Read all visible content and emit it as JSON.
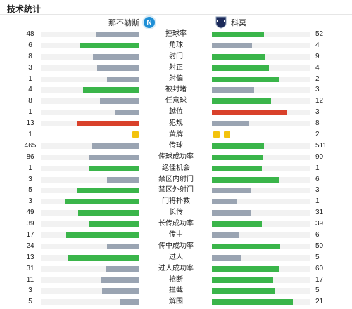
{
  "title": "技术统计",
  "home": {
    "name": "那不勒斯",
    "badge_icon": "napoli-badge-icon",
    "badge_letter": "N"
  },
  "away": {
    "name": "科莫",
    "badge_icon": "como-badge-icon"
  },
  "colors": {
    "win": "#3ab54a",
    "lose": "#9aa4b2",
    "foul_high": "#d9412b",
    "card": "#f3c30d"
  },
  "stats": [
    {
      "label": "控球率",
      "home": "48",
      "away": "52",
      "hw": 0.44,
      "aw": 0.53,
      "hc": "gray",
      "ac": "green"
    },
    {
      "label": "角球",
      "home": "6",
      "away": "4",
      "hw": 0.61,
      "aw": 0.41,
      "hc": "green",
      "ac": "gray"
    },
    {
      "label": "射门",
      "home": "8",
      "away": "9",
      "hw": 0.47,
      "aw": 0.54,
      "hc": "gray",
      "ac": "green"
    },
    {
      "label": "射正",
      "home": "3",
      "away": "4",
      "hw": 0.43,
      "aw": 0.58,
      "hc": "gray",
      "ac": "green"
    },
    {
      "label": "射偏",
      "home": "1",
      "away": "2",
      "hw": 0.33,
      "aw": 0.68,
      "hc": "gray",
      "ac": "green"
    },
    {
      "label": "被封堵",
      "home": "4",
      "away": "3",
      "hw": 0.57,
      "aw": 0.43,
      "hc": "green",
      "ac": "gray"
    },
    {
      "label": "任意球",
      "home": "8",
      "away": "12",
      "hw": 0.4,
      "aw": 0.6,
      "hc": "gray",
      "ac": "green"
    },
    {
      "label": "越位",
      "home": "1",
      "away": "3",
      "hw": 0.25,
      "aw": 0.76,
      "hc": "gray",
      "ac": "red"
    },
    {
      "label": "犯规",
      "home": "13",
      "away": "8",
      "hw": 0.63,
      "aw": 0.38,
      "hc": "red",
      "ac": "gray"
    },
    {
      "label": "黄牌",
      "home": "1",
      "away": "2",
      "cards": true,
      "hcards": 1,
      "acards": 2
    },
    {
      "label": "传球",
      "home": "465",
      "away": "511",
      "hw": 0.48,
      "aw": 0.53,
      "hc": "gray",
      "ac": "green"
    },
    {
      "label": "传球成功率",
      "home": "86",
      "away": "90",
      "hw": 0.51,
      "aw": 0.52,
      "hc": "gray",
      "ac": "green"
    },
    {
      "label": "绝佳机会",
      "home": "1",
      "away": "1",
      "hw": 0.51,
      "aw": 0.51,
      "hc": "green",
      "ac": "green"
    },
    {
      "label": "禁区内射门",
      "home": "3",
      "away": "6",
      "hw": 0.33,
      "aw": 0.68,
      "hc": "gray",
      "ac": "green"
    },
    {
      "label": "禁区外射门",
      "home": "5",
      "away": "3",
      "hw": 0.63,
      "aw": 0.39,
      "hc": "green",
      "ac": "gray"
    },
    {
      "label": "门将扑救",
      "home": "3",
      "away": "1",
      "hw": 0.76,
      "aw": 0.26,
      "hc": "green",
      "ac": "gray"
    },
    {
      "label": "长传",
      "home": "49",
      "away": "31",
      "hw": 0.62,
      "aw": 0.4,
      "hc": "green",
      "ac": "gray"
    },
    {
      "label": "长传成功率",
      "home": "39",
      "away": "39",
      "hw": 0.51,
      "aw": 0.51,
      "hc": "green",
      "ac": "green"
    },
    {
      "label": "传中",
      "home": "17",
      "away": "6",
      "hw": 0.74,
      "aw": 0.27,
      "hc": "green",
      "ac": "gray"
    },
    {
      "label": "传中成功率",
      "home": "24",
      "away": "50",
      "hw": 0.33,
      "aw": 0.69,
      "hc": "gray",
      "ac": "green"
    },
    {
      "label": "过人",
      "home": "13",
      "away": "5",
      "hw": 0.73,
      "aw": 0.29,
      "hc": "green",
      "ac": "gray"
    },
    {
      "label": "过人成功率",
      "home": "31",
      "away": "60",
      "hw": 0.34,
      "aw": 0.68,
      "hc": "gray",
      "ac": "green"
    },
    {
      "label": "抢断",
      "home": "11",
      "away": "17",
      "hw": 0.39,
      "aw": 0.62,
      "hc": "gray",
      "ac": "green"
    },
    {
      "label": "拦截",
      "home": "3",
      "away": "5",
      "hw": 0.38,
      "aw": 0.64,
      "hc": "gray",
      "ac": "green"
    },
    {
      "label": "解围",
      "home": "5",
      "away": "21",
      "hw": 0.19,
      "aw": 0.82,
      "hc": "gray",
      "ac": "green"
    }
  ]
}
